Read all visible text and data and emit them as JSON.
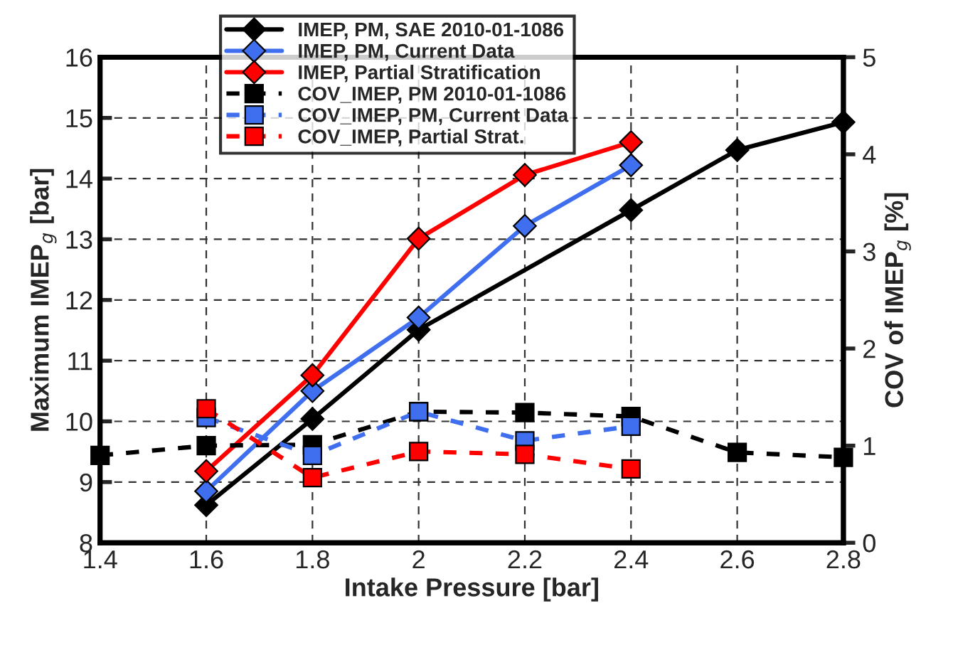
{
  "chart_data": {
    "type": "line",
    "xlabel": "Intake Pressure [bar]",
    "ylabel": "Maximum IMEP$_{g}$ [bar]",
    "y2label": "COV of IMEP$_{g}$ [%]",
    "xlim": [
      1.4,
      2.8
    ],
    "xticks": [
      1.4,
      1.6,
      1.8,
      2,
      2.2,
      2.4,
      2.6,
      2.8
    ],
    "ylim": [
      8,
      16
    ],
    "yticks": [
      8,
      9,
      10,
      11,
      12,
      13,
      14,
      15,
      16
    ],
    "y2lim": [
      0,
      5
    ],
    "y2ticks": [
      0,
      1,
      2,
      3,
      4,
      5
    ],
    "grid": true,
    "legend": "top",
    "series": [
      {
        "name": "IMEP, PM, SAE 2010-01-1086",
        "color": "#000000",
        "marker": "diamond",
        "line_style": "solid",
        "x": [
          1.6,
          1.8,
          2.0,
          2.4,
          2.6,
          2.8
        ],
        "values": [
          8.62,
          10.04,
          11.51,
          13.48,
          14.47,
          14.93
        ]
      },
      {
        "name": "IMEP, PM, Current Data",
        "color": "#3f6fef",
        "marker": "diamond",
        "line_style": "solid",
        "x": [
          1.6,
          1.8,
          2.0,
          2.2,
          2.4
        ],
        "values": [
          8.85,
          10.5,
          11.71,
          13.22,
          14.22
        ]
      },
      {
        "name": "IMEP, Partial Stratification",
        "color": "#ff0000",
        "marker": "diamond",
        "line_style": "solid",
        "x": [
          1.6,
          1.8,
          2.0,
          2.2,
          2.4
        ],
        "values": [
          9.18,
          10.76,
          13.01,
          14.06,
          14.6
        ]
      },
      {
        "name": "COV_IMEP, PM 2010-01-1086",
        "color": "#000000",
        "marker": "square",
        "line_style": "dashed",
        "axis": "y2",
        "x": [
          1.4,
          1.6,
          1.8,
          2.0,
          2.2,
          2.4,
          2.6,
          2.8
        ],
        "values": [
          0.9,
          1.0,
          1.01,
          1.35,
          1.34,
          1.3,
          0.93,
          0.88
        ]
      },
      {
        "name": "COV_IMEP, PM, Current Data",
        "color": "#3f6fef",
        "marker": "square",
        "line_style": "dashed",
        "axis": "y2",
        "x": [
          1.6,
          1.8,
          2.0,
          2.2,
          2.4
        ],
        "values": [
          1.29,
          0.9,
          1.35,
          1.05,
          1.2
        ]
      },
      {
        "name": "COV_IMEP, Partial Strat.",
        "color": "#ff0000",
        "marker": "square",
        "line_style": "dashed",
        "axis": "y2",
        "x": [
          1.6,
          1.8,
          2.0,
          2.2,
          2.4
        ],
        "values": [
          1.38,
          0.67,
          0.94,
          0.91,
          0.76
        ]
      }
    ]
  }
}
